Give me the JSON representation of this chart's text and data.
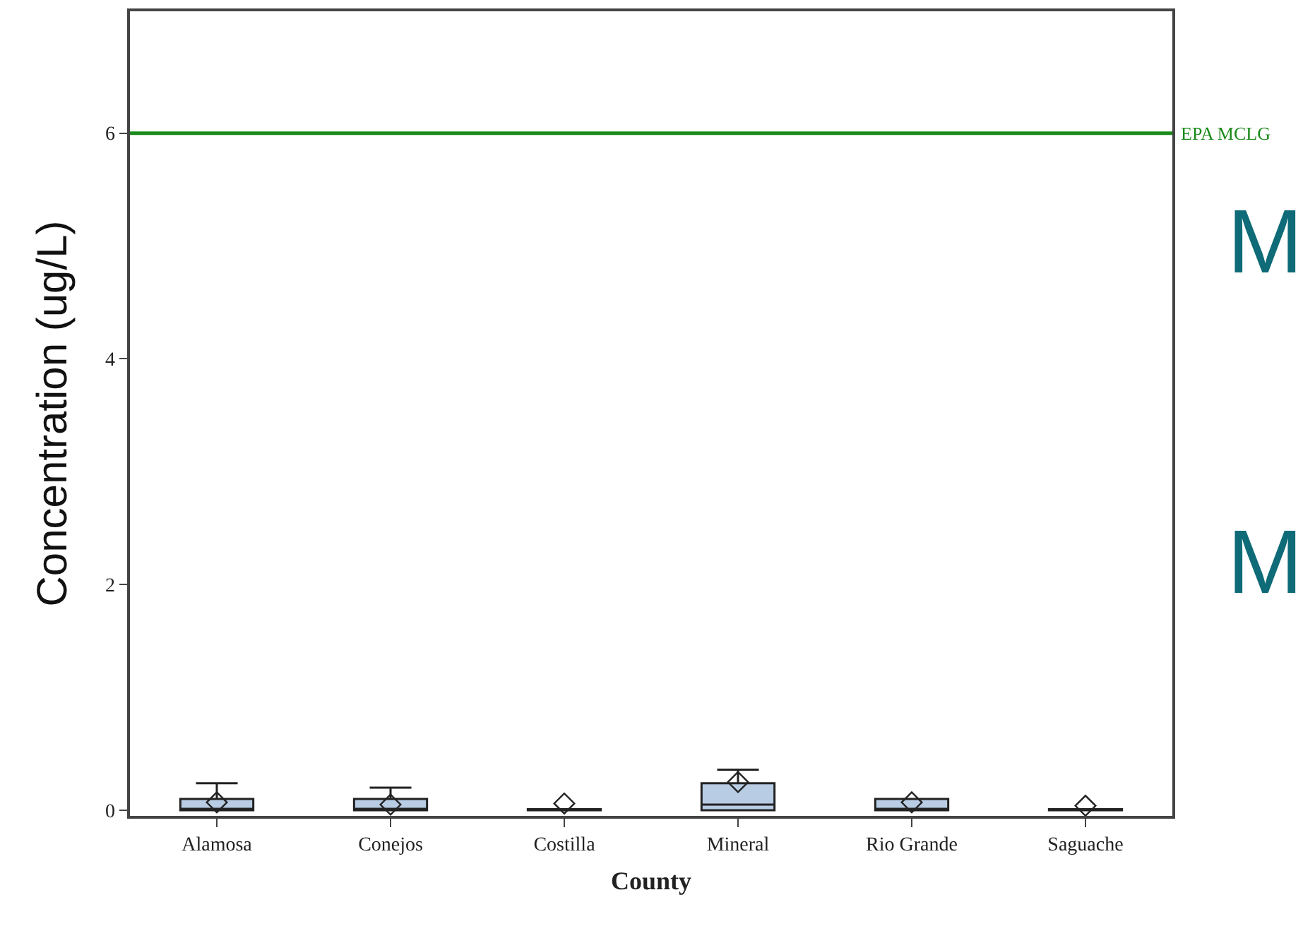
{
  "chart_data": {
    "type": "box",
    "xlabel": "County",
    "ylabel": "Concentration (ug/L)",
    "categories": [
      "Alamosa",
      "Conejos",
      "Costilla",
      "Mineral",
      "Rio Grande",
      "Saguache"
    ],
    "color": "#b8cce4",
    "boxes": [
      {
        "q1": 0,
        "median": 0.01,
        "q3": 0.1,
        "high": 0.24,
        "mean": 0.07
      },
      {
        "q1": 0,
        "median": 0.01,
        "q3": 0.1,
        "high": 0.2,
        "mean": 0.05
      },
      {
        "q1": 0,
        "median": 0,
        "q3": 0.01,
        "high": 0.01,
        "mean": 0.06
      },
      {
        "q1": 0,
        "median": 0.05,
        "q3": 0.24,
        "high": 0.36,
        "mean": 0.25
      },
      {
        "q1": 0,
        "median": 0.01,
        "q3": 0.1,
        "high": 0.1,
        "mean": 0.07
      },
      {
        "q1": 0,
        "median": 0,
        "q3": 0.01,
        "high": 0.01,
        "mean": 0.04
      }
    ],
    "ylim": [
      -0.05,
      7.08
    ],
    "yticks": [
      0,
      2,
      4,
      6
    ],
    "grid": false,
    "ref_lines": [
      {
        "axis": "y",
        "value": 6,
        "label": "EPA MCLG",
        "color": "#1a8a1a"
      }
    ],
    "annotations": [
      "M",
      "M"
    ]
  }
}
